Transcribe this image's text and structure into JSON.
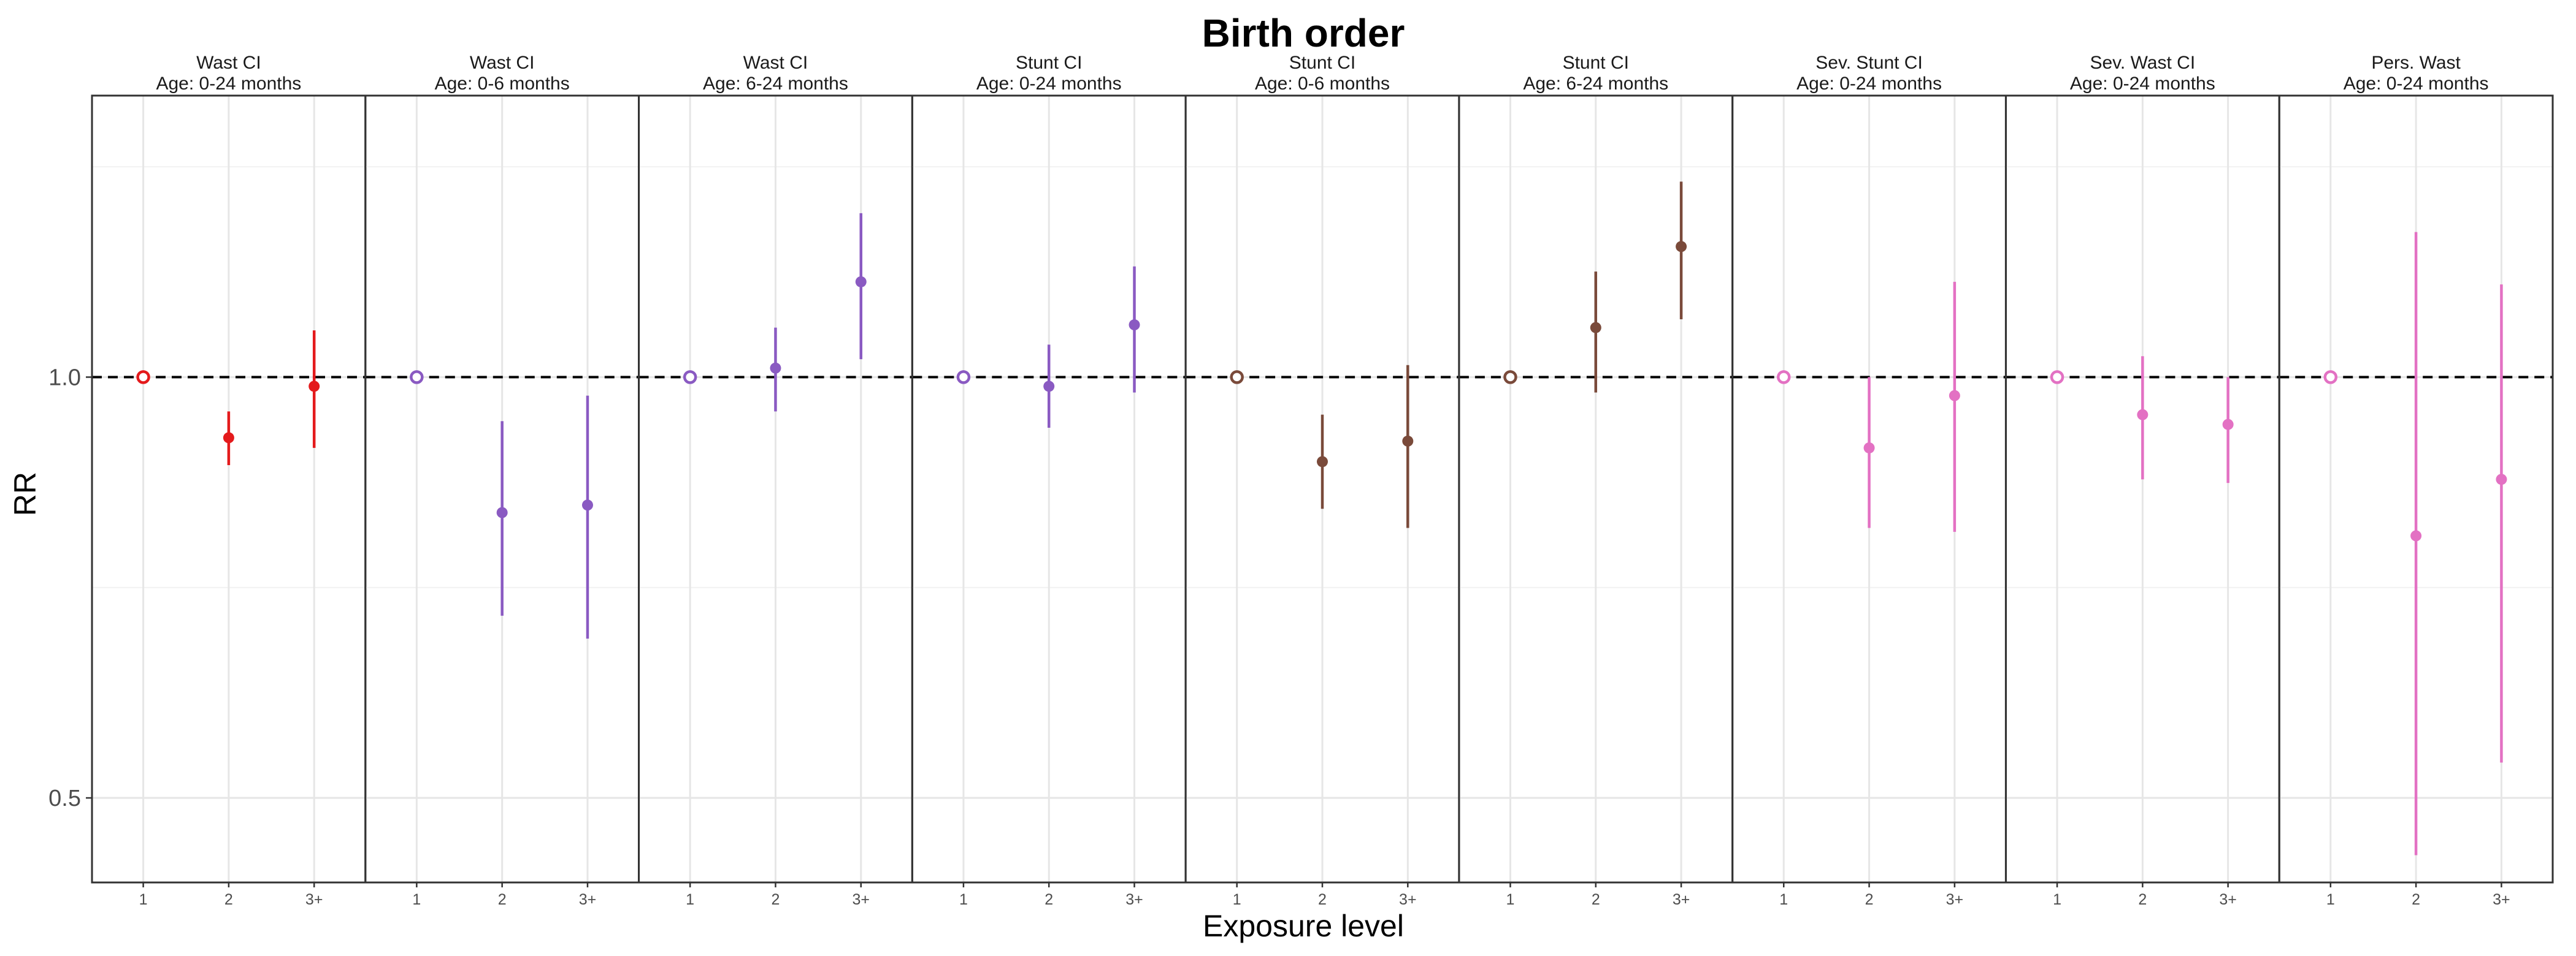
{
  "chart_data": {
    "type": "scatter",
    "title": "Birth order",
    "xlabel": "Exposure level",
    "ylabel": "RR",
    "y_scale": "log",
    "ylim": [
      0.435,
      1.59
    ],
    "y_ticks": [
      0.5,
      1.0
    ],
    "y_tick_labels": [
      "0.5",
      "1.0"
    ],
    "categories": [
      "1",
      "2",
      "3+"
    ],
    "reference_line": 1.0,
    "grid": true,
    "legend": "none",
    "reference_marker": "open circle",
    "colors": {
      "wasting": "#e41a1c",
      "wasting_stunting_ci": "#8a5ac2",
      "stunting": "#7a4a3a",
      "severe": "#e371c3"
    },
    "panels": [
      {
        "strip_line1": "Wast CI",
        "strip_line2": "Age: 0-24 months",
        "color": "#e41a1c",
        "points": [
          {
            "x": "1",
            "estimate": 1.0,
            "ci_lower": 1.0,
            "ci_upper": 1.0,
            "reference": true
          },
          {
            "x": "2",
            "estimate": 0.905,
            "ci_lower": 0.865,
            "ci_upper": 0.945
          },
          {
            "x": "3+",
            "estimate": 0.985,
            "ci_lower": 0.89,
            "ci_upper": 1.08
          }
        ]
      },
      {
        "strip_line1": "Wast CI",
        "strip_line2": "Age: 0-6 months",
        "color": "#8a5ac2",
        "points": [
          {
            "x": "1",
            "estimate": 1.0,
            "ci_lower": 1.0,
            "ci_upper": 1.0,
            "reference": true
          },
          {
            "x": "2",
            "estimate": 0.8,
            "ci_lower": 0.675,
            "ci_upper": 0.93
          },
          {
            "x": "3+",
            "estimate": 0.81,
            "ci_lower": 0.65,
            "ci_upper": 0.97
          }
        ]
      },
      {
        "strip_line1": "Wast CI",
        "strip_line2": "Age: 6-24 months",
        "color": "#8a5ac2",
        "points": [
          {
            "x": "1",
            "estimate": 1.0,
            "ci_lower": 1.0,
            "ci_upper": 1.0,
            "reference": true
          },
          {
            "x": "2",
            "estimate": 1.015,
            "ci_lower": 0.945,
            "ci_upper": 1.085
          },
          {
            "x": "3+",
            "estimate": 1.17,
            "ci_lower": 1.03,
            "ci_upper": 1.31
          }
        ]
      },
      {
        "strip_line1": "Stunt CI",
        "strip_line2": "Age: 0-24 months",
        "color": "#8a5ac2",
        "points": [
          {
            "x": "1",
            "estimate": 1.0,
            "ci_lower": 1.0,
            "ci_upper": 1.0,
            "reference": true
          },
          {
            "x": "2",
            "estimate": 0.985,
            "ci_lower": 0.92,
            "ci_upper": 1.055
          },
          {
            "x": "3+",
            "estimate": 1.09,
            "ci_lower": 0.975,
            "ci_upper": 1.2
          }
        ]
      },
      {
        "strip_line1": "Stunt CI",
        "strip_line2": "Age: 0-6 months",
        "color": "#7a4a3a",
        "points": [
          {
            "x": "1",
            "estimate": 1.0,
            "ci_lower": 1.0,
            "ci_upper": 1.0,
            "reference": true
          },
          {
            "x": "2",
            "estimate": 0.87,
            "ci_lower": 0.805,
            "ci_upper": 0.94
          },
          {
            "x": "3+",
            "estimate": 0.9,
            "ci_lower": 0.78,
            "ci_upper": 1.02
          }
        ]
      },
      {
        "strip_line1": "Stunt CI",
        "strip_line2": "Age: 6-24 months",
        "color": "#7a4a3a",
        "points": [
          {
            "x": "1",
            "estimate": 1.0,
            "ci_lower": 1.0,
            "ci_upper": 1.0,
            "reference": true
          },
          {
            "x": "2",
            "estimate": 1.085,
            "ci_lower": 0.975,
            "ci_upper": 1.19
          },
          {
            "x": "3+",
            "estimate": 1.24,
            "ci_lower": 1.1,
            "ci_upper": 1.38
          }
        ]
      },
      {
        "strip_line1": "Sev. Stunt CI",
        "strip_line2": "Age: 0-24 months",
        "color": "#e371c3",
        "points": [
          {
            "x": "1",
            "estimate": 1.0,
            "ci_lower": 1.0,
            "ci_upper": 1.0,
            "reference": true
          },
          {
            "x": "2",
            "estimate": 0.89,
            "ci_lower": 0.78,
            "ci_upper": 1.0
          },
          {
            "x": "3+",
            "estimate": 0.97,
            "ci_lower": 0.775,
            "ci_upper": 1.17
          }
        ]
      },
      {
        "strip_line1": "Sev. Wast CI",
        "strip_line2": "Age: 0-24 months",
        "color": "#e371c3",
        "points": [
          {
            "x": "1",
            "estimate": 1.0,
            "ci_lower": 1.0,
            "ci_upper": 1.0,
            "reference": true
          },
          {
            "x": "2",
            "estimate": 0.94,
            "ci_lower": 0.845,
            "ci_upper": 1.035
          },
          {
            "x": "3+",
            "estimate": 0.925,
            "ci_lower": 0.84,
            "ci_upper": 1.0
          }
        ]
      },
      {
        "strip_line1": "Pers. Wast",
        "strip_line2": "Age: 0-24 months",
        "color": "#e371c3",
        "points": [
          {
            "x": "1",
            "estimate": 1.0,
            "ci_lower": 1.0,
            "ci_upper": 1.0,
            "reference": true
          },
          {
            "x": "2",
            "estimate": 0.77,
            "ci_lower": 0.455,
            "ci_upper": 1.27
          },
          {
            "x": "3+",
            "estimate": 0.845,
            "ci_lower": 0.53,
            "ci_upper": 1.165
          }
        ]
      }
    ]
  }
}
